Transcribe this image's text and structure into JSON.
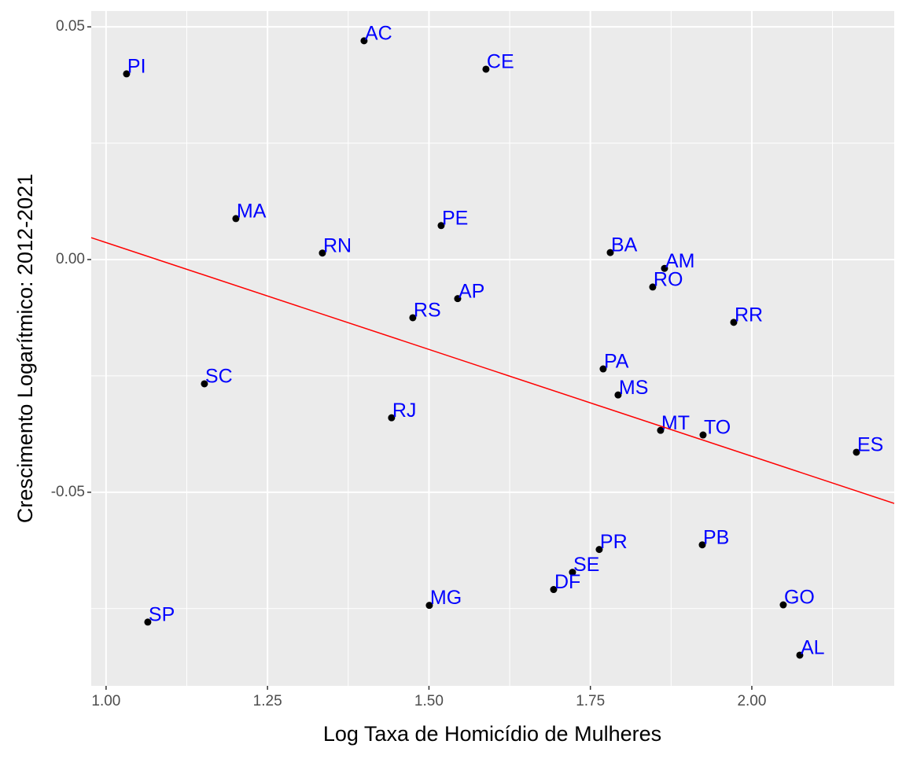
{
  "chart_data": {
    "type": "scatter",
    "x_label": "Log Taxa de Homicídio de Mulheres",
    "y_label": "Crescimento Logarítmico: 2012-2021",
    "xlim": [
      0.977,
      2.2205
    ],
    "ylim": [
      -0.0916,
      0.0534
    ],
    "xticks": [
      {
        "value": 1.0,
        "label": "1.00"
      },
      {
        "value": 1.25,
        "label": "1.25"
      },
      {
        "value": 1.5,
        "label": "1.50"
      },
      {
        "value": 1.75,
        "label": "1.75"
      },
      {
        "value": 2.0,
        "label": "2.00"
      }
    ],
    "yticks": [
      {
        "value": -0.05,
        "label": "-0.05"
      },
      {
        "value": 0.0,
        "label": "0.00"
      },
      {
        "value": 0.05,
        "label": "0.05"
      }
    ],
    "grid": true,
    "point_color": "#000000",
    "label_color": "#0000ff",
    "labels": [
      "PI",
      "AC",
      "CE",
      "MA",
      "PE",
      "RN",
      "BA",
      "AM",
      "RO",
      "AP",
      "RS",
      "RR",
      "PA",
      "MS",
      "SC",
      "RJ",
      "MT",
      "TO",
      "ES",
      "PB",
      "PR",
      "SE",
      "DF",
      "GO",
      "MG",
      "SP",
      "AL"
    ],
    "x": [
      1.0317,
      1.3995,
      1.5883,
      1.201,
      1.5189,
      1.335,
      1.7808,
      1.8648,
      1.8465,
      1.5445,
      1.475,
      1.972,
      1.7698,
      1.7929,
      1.1523,
      1.4421,
      1.8587,
      1.9245,
      2.162,
      1.9233,
      1.7637,
      1.7223,
      1.6931,
      2.0487,
      1.5006,
      1.0646,
      2.0743
    ],
    "y": [
      0.0399,
      0.047,
      0.0409,
      0.0088,
      0.0073,
      0.0014,
      0.0015,
      -0.0019,
      -0.0059,
      -0.0084,
      -0.0125,
      -0.0135,
      -0.0235,
      -0.0291,
      -0.0267,
      -0.034,
      -0.0367,
      -0.0377,
      -0.0414,
      -0.0613,
      -0.0623,
      -0.0672,
      -0.0709,
      -0.0742,
      -0.0743,
      -0.0779,
      -0.085
    ],
    "trend_line": {
      "x": [
        0.977,
        2.2205
      ],
      "y": [
        0.0047,
        -0.0524
      ],
      "color": "#ff0000"
    }
  }
}
